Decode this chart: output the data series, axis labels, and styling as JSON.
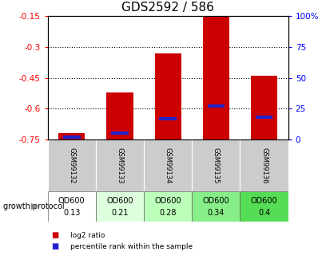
{
  "title": "GDS2592 / 586",
  "samples": [
    "GSM99132",
    "GSM99133",
    "GSM99134",
    "GSM99135",
    "GSM99136"
  ],
  "log2_ratio": [
    -0.72,
    -0.52,
    -0.33,
    -0.15,
    -0.44
  ],
  "percentile": [
    2,
    5,
    17,
    27,
    18
  ],
  "growth_protocol_line1": [
    "OD600",
    "OD600",
    "OD600",
    "OD600",
    "OD600"
  ],
  "growth_protocol_line2": [
    "0.13",
    "0.21",
    "0.28",
    "0.34",
    "0.4"
  ],
  "protocol_colors": [
    "#ffffff",
    "#ddffdd",
    "#bbffbb",
    "#88ee88",
    "#55dd55"
  ],
  "ylim_left": [
    -0.75,
    -0.15
  ],
  "ylim_right": [
    0,
    100
  ],
  "yticks_left": [
    -0.75,
    -0.6,
    -0.45,
    -0.3,
    -0.15
  ],
  "yticks_right": [
    0,
    25,
    50,
    75,
    100
  ],
  "bar_color_red": "#cc0000",
  "bar_color_blue": "#2222cc",
  "bar_width": 0.55,
  "bg_labels": "#cccccc",
  "legend_red": "log2 ratio",
  "legend_blue": "percentile rank within the sample",
  "growth_label": "growth protocol",
  "title_fontsize": 11,
  "tick_fontsize": 7.5,
  "sample_fontsize": 6,
  "protocol_fontsize": 7
}
